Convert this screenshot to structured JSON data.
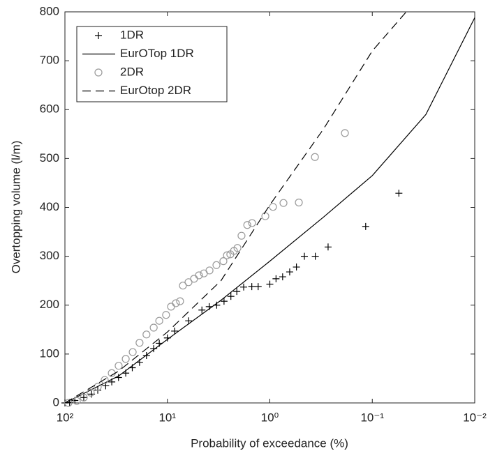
{
  "chart_data": {
    "type": "scatter",
    "xlabel": "Probability of exceedance (%)",
    "ylabel": "Overtopping volume (l/m)",
    "xscale": "log",
    "xlim": [
      100,
      0.01
    ],
    "xticks": [
      {
        "value": 100,
        "label": "10²"
      },
      {
        "value": 10,
        "label": "10¹"
      },
      {
        "value": 1,
        "label": "10⁰"
      },
      {
        "value": 0.1,
        "label": "10⁻¹"
      },
      {
        "value": 0.01,
        "label": "10⁻²"
      }
    ],
    "ylim": [
      0,
      800
    ],
    "yticks": [
      0,
      100,
      200,
      300,
      400,
      500,
      600,
      700,
      800
    ],
    "legend": "upper left",
    "series": [
      {
        "name": "1DR",
        "color": "#000000",
        "marker": "plus",
        "x": [
          100,
          90,
          80,
          65.5,
          55,
          47.8,
          40,
          34.9,
          30,
          25.5,
          22,
          18.7,
          16,
          13.6,
          12,
          10,
          8.5,
          6.2,
          4.6,
          3.9,
          3.3,
          2.8,
          2.4,
          2.1,
          1.8,
          1.5,
          1.3,
          1.0,
          0.87,
          0.75,
          0.64,
          0.55,
          0.46,
          0.36,
          0.27,
          0.116,
          0.055
        ],
        "values": [
          0,
          1,
          5,
          11,
          18,
          26,
          35,
          43,
          52,
          61,
          72,
          83,
          97,
          111,
          122,
          133,
          147,
          168,
          190,
          197,
          200,
          208,
          218,
          228,
          237,
          238,
          238,
          243,
          254,
          258,
          268,
          278,
          300,
          300,
          319,
          361,
          429
        ]
      },
      {
        "name": "EurOTop 1DR",
        "color": "#000000",
        "line": "solid",
        "x": [
          100,
          30,
          10,
          3,
          1,
          0.3,
          0.1,
          0.03,
          0.01
        ],
        "values": [
          0,
          55,
          130,
          210,
          290,
          380,
          465,
          590,
          788
        ]
      },
      {
        "name": "2DR",
        "color": "#999999",
        "marker": "circle",
        "x": [
          92.5,
          76.6,
          65.5,
          56.0,
          47.8,
          40.9,
          34.9,
          29.9,
          25.5,
          21.8,
          18.7,
          16.0,
          13.6,
          12.0,
          10.3,
          9.21,
          8.26,
          7.52,
          7.05,
          6.22,
          5.49,
          4.92,
          4.4,
          3.88,
          3.32,
          2.84,
          2.62,
          2.43,
          2.24,
          2.07,
          1.89,
          1.66,
          1.49,
          1.107,
          0.931,
          0.736,
          0.521,
          0.363,
          0.185
        ],
        "values": [
          0,
          4,
          11,
          21,
          33,
          47,
          61,
          76,
          90,
          104,
          123,
          140,
          154,
          168,
          180,
          197,
          204,
          208,
          240,
          247,
          254,
          261,
          265,
          271,
          282,
          290,
          302,
          304,
          311,
          317,
          342,
          364,
          368,
          382,
          401,
          409,
          410,
          503,
          552
        ]
      },
      {
        "name": "EurOtop 2DR",
        "color": "#000000",
        "line": "dashed",
        "x": [
          100,
          30,
          10,
          3,
          1,
          0.3,
          0.1,
          0.0466
        ],
        "values": [
          0,
          65,
          145,
          250,
          405,
          560,
          720,
          800
        ]
      }
    ]
  }
}
